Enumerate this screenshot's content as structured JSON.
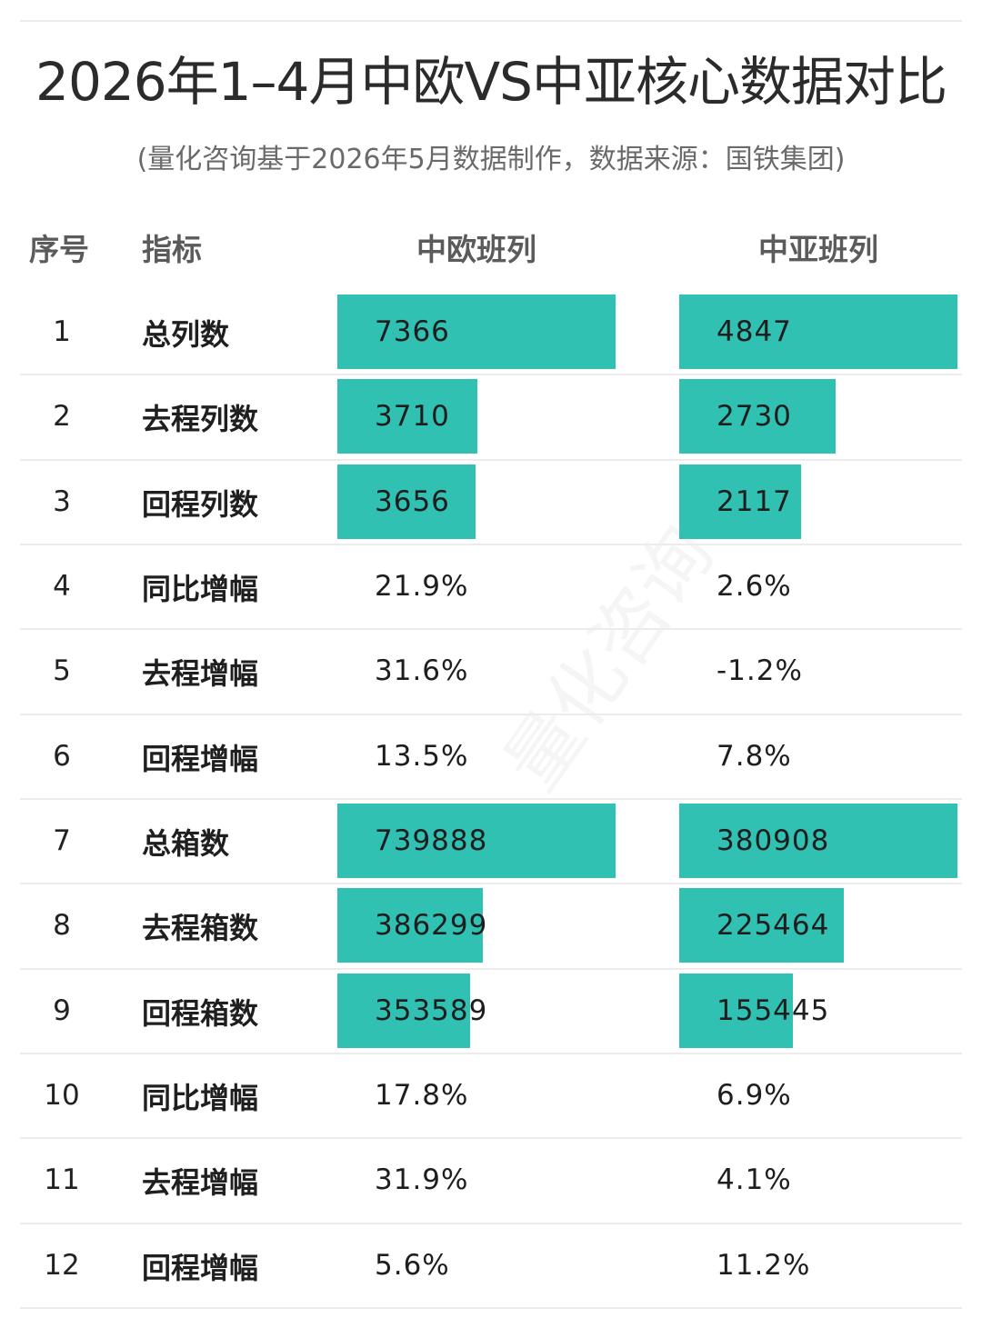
{
  "title": "2026年1–4月中欧VS中亚核心数据对比",
  "subtitle": "(量化咨询基于2026年5月数据制作，数据来源：国铁集团)",
  "watermark": "量化咨询",
  "columns": [
    "序号",
    "指标",
    "中欧班列",
    "中亚班列"
  ],
  "colors": {
    "bar": "#30c1b3",
    "grid": "#ececec"
  },
  "chart_data": {
    "type": "table",
    "title": "2026年1–4月中欧VS中亚核心数据对比",
    "subtitle": "(量化咨询基于2026年5月数据制作，数据来源：国铁集团)",
    "columns": [
      "序号",
      "指标",
      "中欧班列",
      "中亚班列"
    ],
    "rows": [
      {
        "idx": "1",
        "metric": "总列数",
        "eu": "7366",
        "ca": "4847",
        "eu_value": 7366,
        "ca_value": 4847,
        "bar": true
      },
      {
        "idx": "2",
        "metric": "去程列数",
        "eu": "3710",
        "ca": "2730",
        "eu_value": 3710,
        "ca_value": 2730,
        "bar": true
      },
      {
        "idx": "3",
        "metric": "回程列数",
        "eu": "3656",
        "ca": "2117",
        "eu_value": 3656,
        "ca_value": 2117,
        "bar": true
      },
      {
        "idx": "4",
        "metric": "同比增幅",
        "eu": "21.9%",
        "ca": "2.6%",
        "bar": false
      },
      {
        "idx": "5",
        "metric": "去程增幅",
        "eu": "31.6%",
        "ca": "-1.2%",
        "bar": false
      },
      {
        "idx": "6",
        "metric": "回程增幅",
        "eu": "13.5%",
        "ca": "7.8%",
        "bar": false
      },
      {
        "idx": "7",
        "metric": "总箱数",
        "eu": "739888",
        "ca": "380908",
        "eu_value": 739888,
        "ca_value": 380908,
        "bar": true
      },
      {
        "idx": "8",
        "metric": "去程箱数",
        "eu": "386299",
        "ca": "225464",
        "eu_value": 386299,
        "ca_value": 225464,
        "bar": true
      },
      {
        "idx": "9",
        "metric": "回程箱数",
        "eu": "353589",
        "ca": "155445",
        "eu_value": 353589,
        "ca_value": 155445,
        "bar": true
      },
      {
        "idx": "10",
        "metric": "同比增幅",
        "eu": "17.8%",
        "ca": "6.9%",
        "bar": false
      },
      {
        "idx": "11",
        "metric": "去程增幅",
        "eu": "31.9%",
        "ca": "4.1%",
        "bar": false
      },
      {
        "idx": "12",
        "metric": "回程增幅",
        "eu": "5.6%",
        "ca": "11.2%",
        "bar": false
      }
    ]
  }
}
